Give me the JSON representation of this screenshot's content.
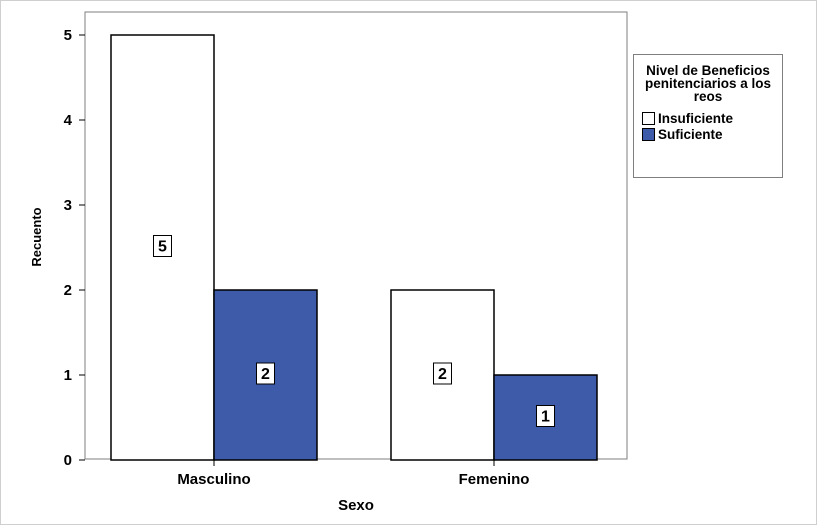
{
  "chart_data": {
    "type": "bar",
    "categories": [
      "Masculino",
      "Femenino"
    ],
    "series": [
      {
        "name": "Insuficiente",
        "color": "#ffffff",
        "values": [
          5,
          2
        ]
      },
      {
        "name": "Suficiente",
        "color": "#3e5ba9",
        "values": [
          2,
          1
        ]
      }
    ],
    "xlabel": "Sexo",
    "ylabel": "Recuento",
    "ylim": [
      0,
      5
    ],
    "yticks": [
      "0",
      "1",
      "2",
      "3",
      "4",
      "5"
    ],
    "grid": false,
    "legend": {
      "title": "Nivel de Beneficios penitenciarios a los reos",
      "position": "right"
    },
    "data_labels": [
      [
        "5",
        "2"
      ],
      [
        "2",
        "1"
      ]
    ]
  }
}
